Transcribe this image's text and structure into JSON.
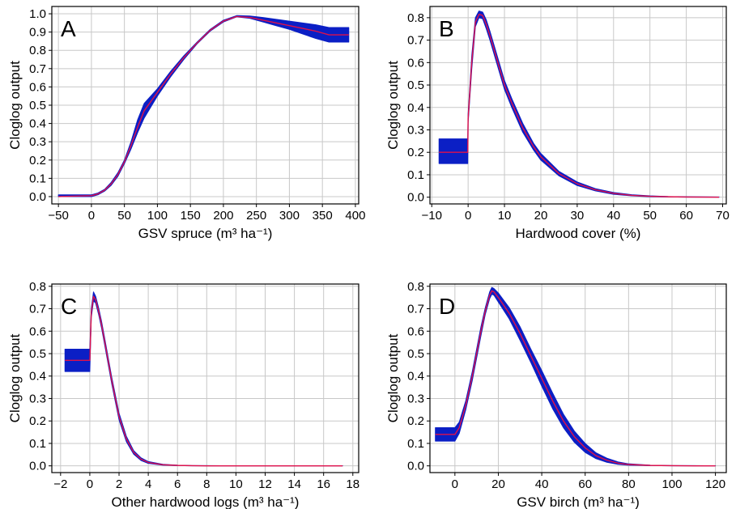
{
  "figure": {
    "panels": [
      "A",
      "B",
      "C",
      "D"
    ]
  },
  "chart_data": [
    {
      "type": "line",
      "panel": "A",
      "xlabel": "GSV spruce (m³ ha⁻¹)",
      "ylabel": "Cloglog output",
      "xlim": [
        -60,
        405
      ],
      "ylim": [
        -0.04,
        1.04
      ],
      "xticks": [
        -50,
        0,
        50,
        100,
        150,
        200,
        250,
        300,
        350,
        400
      ],
      "yticks": [
        0.0,
        0.1,
        0.2,
        0.3,
        0.4,
        0.5,
        0.6,
        0.7,
        0.8,
        0.9,
        1.0
      ],
      "xtick_labels": [
        "−50",
        "0",
        "50",
        "100",
        "150",
        "200",
        "250",
        "300",
        "350",
        "400"
      ],
      "ytick_labels": [
        "0.0",
        "0.1",
        "0.2",
        "0.3",
        "0.4",
        "0.5",
        "0.6",
        "0.7",
        "0.8",
        "0.9",
        "1.0"
      ],
      "grid": true,
      "series": [
        {
          "role": "mean",
          "color": "#e0114a",
          "x": [
            -50,
            0,
            10,
            20,
            30,
            40,
            50,
            60,
            70,
            80,
            90,
            100,
            120,
            140,
            160,
            180,
            200,
            220,
            240,
            260,
            280,
            300,
            320,
            340,
            360,
            390
          ],
          "y": [
            0.0,
            0.005,
            0.015,
            0.035,
            0.07,
            0.12,
            0.19,
            0.28,
            0.38,
            0.47,
            0.52,
            0.57,
            0.67,
            0.76,
            0.84,
            0.91,
            0.96,
            0.985,
            0.98,
            0.965,
            0.95,
            0.935,
            0.92,
            0.905,
            0.885,
            0.885
          ]
        },
        {
          "role": "band",
          "color": "#0b1fc5",
          "x": [
            -50,
            0,
            10,
            20,
            30,
            40,
            50,
            60,
            70,
            80,
            90,
            100,
            120,
            140,
            160,
            180,
            200,
            220,
            240,
            260,
            280,
            300,
            320,
            340,
            360,
            390
          ],
          "lower": [
            0.0,
            0.0,
            0.01,
            0.03,
            0.062,
            0.11,
            0.18,
            0.26,
            0.35,
            0.43,
            0.49,
            0.55,
            0.655,
            0.75,
            0.835,
            0.905,
            0.955,
            0.983,
            0.975,
            0.955,
            0.935,
            0.915,
            0.89,
            0.865,
            0.845,
            0.845
          ],
          "upper": [
            0.01,
            0.01,
            0.02,
            0.04,
            0.078,
            0.13,
            0.2,
            0.3,
            0.42,
            0.51,
            0.55,
            0.59,
            0.685,
            0.77,
            0.845,
            0.915,
            0.965,
            0.99,
            0.988,
            0.98,
            0.97,
            0.96,
            0.95,
            0.94,
            0.925,
            0.925
          ]
        }
      ]
    },
    {
      "type": "line",
      "panel": "B",
      "xlabel": "Hardwood cover (%)",
      "ylabel": "Cloglog output",
      "xlim": [
        -10.5,
        71
      ],
      "ylim": [
        -0.03,
        0.85
      ],
      "xticks": [
        -10,
        0,
        10,
        20,
        30,
        40,
        50,
        60,
        70
      ],
      "yticks": [
        0.0,
        0.1,
        0.2,
        0.3,
        0.4,
        0.5,
        0.6,
        0.7,
        0.8
      ],
      "xtick_labels": [
        "−10",
        "0",
        "10",
        "20",
        "30",
        "40",
        "50",
        "60",
        "70"
      ],
      "ytick_labels": [
        "0.0",
        "0.1",
        "0.2",
        "0.3",
        "0.4",
        "0.5",
        "0.6",
        "0.7",
        "0.8"
      ],
      "grid": true,
      "series": [
        {
          "role": "mean",
          "color": "#e0114a",
          "x": [
            -8,
            -0.1,
            0,
            1,
            2,
            3,
            4,
            5,
            6,
            8,
            10,
            12,
            15,
            18,
            20,
            25,
            30,
            35,
            40,
            45,
            50,
            55,
            60,
            69
          ],
          "y": [
            0.2,
            0.2,
            0.35,
            0.6,
            0.78,
            0.815,
            0.81,
            0.77,
            0.72,
            0.61,
            0.5,
            0.42,
            0.31,
            0.225,
            0.18,
            0.105,
            0.06,
            0.033,
            0.017,
            0.008,
            0.004,
            0.002,
            0.001,
            0.0
          ]
        },
        {
          "role": "band",
          "color": "#0b1fc5",
          "x": [
            -8,
            -0.1,
            0,
            1,
            2,
            3,
            4,
            5,
            6,
            8,
            10,
            12,
            15,
            18,
            20,
            25,
            30,
            35,
            40,
            45,
            50,
            55,
            60,
            69
          ],
          "lower": [
            0.15,
            0.15,
            0.33,
            0.57,
            0.76,
            0.8,
            0.795,
            0.75,
            0.7,
            0.59,
            0.48,
            0.4,
            0.29,
            0.21,
            0.165,
            0.095,
            0.052,
            0.028,
            0.013,
            0.006,
            0.002,
            0.001,
            0.0,
            0.0
          ],
          "upper": [
            0.26,
            0.26,
            0.37,
            0.63,
            0.8,
            0.83,
            0.825,
            0.79,
            0.74,
            0.63,
            0.52,
            0.44,
            0.33,
            0.24,
            0.195,
            0.115,
            0.068,
            0.038,
            0.021,
            0.011,
            0.006,
            0.003,
            0.002,
            0.001
          ]
        }
      ]
    },
    {
      "type": "line",
      "panel": "C",
      "xlabel": "Other hardwood logs (m³ ha⁻¹)",
      "ylabel": "Cloglog output",
      "xlim": [
        -2.6,
        18.4
      ],
      "ylim": [
        -0.03,
        0.81
      ],
      "xticks": [
        -2,
        0,
        2,
        4,
        6,
        8,
        10,
        12,
        14,
        16,
        18
      ],
      "yticks": [
        0.0,
        0.1,
        0.2,
        0.3,
        0.4,
        0.5,
        0.6,
        0.7,
        0.8
      ],
      "xtick_labels": [
        "−2",
        "0",
        "2",
        "4",
        "6",
        "8",
        "10",
        "12",
        "14",
        "16",
        "18"
      ],
      "ytick_labels": [
        "0.0",
        "0.1",
        "0.2",
        "0.3",
        "0.4",
        "0.5",
        "0.6",
        "0.7",
        "0.8"
      ],
      "grid": true,
      "series": [
        {
          "role": "mean",
          "color": "#e0114a",
          "x": [
            -1.7,
            -0.02,
            0,
            0.1,
            0.25,
            0.4,
            0.6,
            0.8,
            1.0,
            1.5,
            2.0,
            2.5,
            3.0,
            3.5,
            4.0,
            5.0,
            6.0,
            7.0,
            8.0,
            10.0,
            12.0,
            14.0,
            17.3
          ],
          "y": [
            0.47,
            0.47,
            0.47,
            0.68,
            0.755,
            0.74,
            0.69,
            0.63,
            0.56,
            0.38,
            0.22,
            0.12,
            0.06,
            0.03,
            0.015,
            0.005,
            0.002,
            0.001,
            0.0,
            0.0,
            0.0,
            0.0,
            0.0
          ]
        },
        {
          "role": "band",
          "color": "#0b1fc5",
          "x": [
            -1.7,
            -0.02,
            0,
            0.1,
            0.25,
            0.4,
            0.6,
            0.8,
            1.0,
            1.5,
            2.0,
            2.5,
            3.0,
            3.5,
            4.0,
            5.0,
            6.0,
            7.0,
            8.0,
            10.0,
            12.0,
            14.0,
            17.3
          ],
          "lower": [
            0.42,
            0.42,
            0.42,
            0.66,
            0.735,
            0.725,
            0.675,
            0.615,
            0.545,
            0.365,
            0.205,
            0.108,
            0.052,
            0.024,
            0.011,
            0.003,
            0.001,
            0.0,
            0.0,
            0.0,
            0.0,
            0.0,
            0.0
          ],
          "upper": [
            0.52,
            0.52,
            0.52,
            0.7,
            0.775,
            0.755,
            0.705,
            0.645,
            0.575,
            0.395,
            0.235,
            0.132,
            0.068,
            0.036,
            0.019,
            0.007,
            0.003,
            0.001,
            0.001,
            0.0,
            0.0,
            0.0,
            0.0
          ]
        }
      ]
    },
    {
      "type": "line",
      "panel": "D",
      "xlabel": "GSV birch (m³ ha⁻¹)",
      "ylabel": "Cloglog output",
      "xlim": [
        -11.5,
        125
      ],
      "ylim": [
        -0.03,
        0.81
      ],
      "xticks": [
        0,
        20,
        40,
        60,
        80,
        100,
        120
      ],
      "yticks": [
        0.0,
        0.1,
        0.2,
        0.3,
        0.4,
        0.5,
        0.6,
        0.7,
        0.8
      ],
      "xtick_labels": [
        "0",
        "20",
        "40",
        "60",
        "80",
        "100",
        "120"
      ],
      "ytick_labels": [
        "0.0",
        "0.1",
        "0.2",
        "0.3",
        "0.4",
        "0.5",
        "0.6",
        "0.7",
        "0.8"
      ],
      "grid": true,
      "series": [
        {
          "role": "mean",
          "color": "#e0114a",
          "x": [
            -9,
            0,
            2,
            5,
            8,
            10,
            12,
            14,
            16,
            17,
            18,
            20,
            25,
            30,
            35,
            40,
            45,
            50,
            55,
            60,
            65,
            70,
            75,
            80,
            90,
            100,
            110,
            120
          ],
          "y": [
            0.14,
            0.14,
            0.17,
            0.27,
            0.4,
            0.5,
            0.6,
            0.69,
            0.76,
            0.78,
            0.775,
            0.75,
            0.68,
            0.59,
            0.49,
            0.39,
            0.29,
            0.2,
            0.13,
            0.08,
            0.045,
            0.025,
            0.012,
            0.006,
            0.002,
            0.001,
            0.0,
            0.0
          ]
        },
        {
          "role": "band",
          "color": "#0b1fc5",
          "x": [
            -9,
            0,
            2,
            5,
            8,
            10,
            12,
            14,
            16,
            17,
            18,
            20,
            25,
            30,
            35,
            40,
            45,
            50,
            55,
            60,
            65,
            70,
            75,
            80,
            90,
            100,
            110,
            120
          ],
          "lower": [
            0.11,
            0.11,
            0.145,
            0.25,
            0.38,
            0.48,
            0.58,
            0.675,
            0.745,
            0.765,
            0.76,
            0.73,
            0.655,
            0.56,
            0.46,
            0.355,
            0.255,
            0.17,
            0.105,
            0.06,
            0.032,
            0.016,
            0.007,
            0.003,
            0.001,
            0.0,
            0.0,
            0.0
          ],
          "upper": [
            0.17,
            0.17,
            0.195,
            0.29,
            0.42,
            0.52,
            0.62,
            0.705,
            0.775,
            0.795,
            0.79,
            0.77,
            0.705,
            0.62,
            0.52,
            0.425,
            0.325,
            0.23,
            0.155,
            0.1,
            0.058,
            0.034,
            0.018,
            0.009,
            0.003,
            0.001,
            0.001,
            0.0
          ]
        }
      ]
    }
  ]
}
